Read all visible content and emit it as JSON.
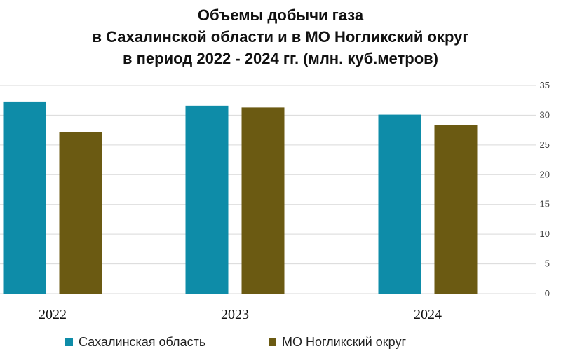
{
  "chart_data": {
    "type": "bar",
    "title_lines": [
      "Объемы добычи газа",
      "в Сахалинской  области и в МО Ногликский округ",
      "в период 2022 - 2024 гг.   (млн. куб.метров)"
    ],
    "categories": [
      "2022",
      "2023",
      "2024"
    ],
    "series": [
      {
        "name": "Сахалинская область",
        "color": "#0E8CA8",
        "values": [
          32.3,
          31.6,
          30.1
        ]
      },
      {
        "name": "МО Ногликский округ",
        "color": "#6B5A12",
        "values": [
          27.2,
          31.3,
          28.3
        ]
      }
    ],
    "ylim": [
      0,
      35
    ],
    "yticks": [
      0,
      5,
      10,
      15,
      20,
      25,
      30,
      35
    ],
    "y_axis_side": "right",
    "grid": true,
    "legend_position": "bottom"
  }
}
